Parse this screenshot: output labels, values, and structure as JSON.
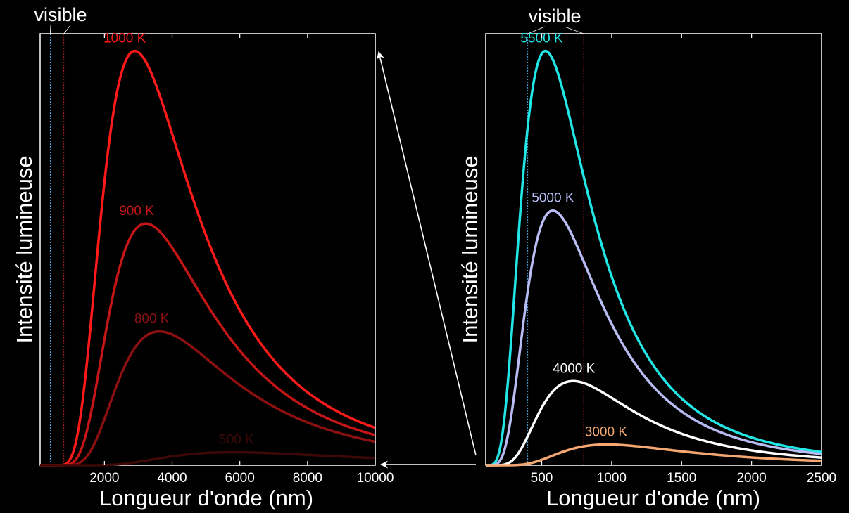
{
  "colors": {
    "background": "#000000",
    "axis": "#ffffff",
    "visible_blue": "#4aa3df",
    "visible_red": "#b22222"
  },
  "chart_data": [
    {
      "type": "line",
      "xlabel": "Longueur d'onde (nm)",
      "ylabel": "Intensité lumineuse",
      "xlim": [
        100,
        10000
      ],
      "ylim": [
        0,
        1
      ],
      "x_ticks": [
        2000,
        4000,
        6000,
        8000,
        10000
      ],
      "x_tick_labels": [
        "2000",
        "4000",
        "6000",
        "8000",
        "10000"
      ],
      "grid": false,
      "visible_label": "visible",
      "visible_band": [
        400,
        800
      ],
      "series": [
        {
          "name": "1000 K",
          "temperature_K": 1000,
          "peak": 0.96,
          "color": "#ff1a1a",
          "label_x": 2600
        },
        {
          "name": "900 K",
          "temperature_K": 900,
          "peak": 0.56,
          "color": "#c41616",
          "label_x": 2950
        },
        {
          "name": "800 K",
          "temperature_K": 800,
          "peak": 0.31,
          "color": "#8c1010",
          "label_x": 3400
        },
        {
          "name": "500 K",
          "temperature_K": 500,
          "peak": 0.03,
          "color": "#3d0808",
          "label_x": 5900
        }
      ]
    },
    {
      "type": "line",
      "xlabel": "Longueur d'onde (nm)",
      "ylabel": "Intensité lumineuse",
      "xlim": [
        100,
        2500
      ],
      "ylim": [
        0,
        1
      ],
      "x_ticks": [
        500,
        1000,
        1500,
        2000,
        2500
      ],
      "x_tick_labels": [
        "500",
        "1000",
        "1500",
        "2000",
        "2500"
      ],
      "grid": false,
      "visible_label": "visible",
      "visible_band": [
        400,
        800
      ],
      "series": [
        {
          "name": "5500 K",
          "temperature_K": 5500,
          "peak": 0.96,
          "color": "#22e6e6",
          "label_x": 500
        },
        {
          "name": "5000 K",
          "temperature_K": 5000,
          "peak": 0.59,
          "color": "#b8bcf2",
          "label_x": 580
        },
        {
          "name": "4000 K",
          "temperature_K": 4000,
          "peak": 0.195,
          "color": "#ffffff",
          "label_x": 730
        },
        {
          "name": "3000 K",
          "temperature_K": 3000,
          "peak": 0.048,
          "color": "#f5a772",
          "label_x": 960
        }
      ]
    }
  ]
}
